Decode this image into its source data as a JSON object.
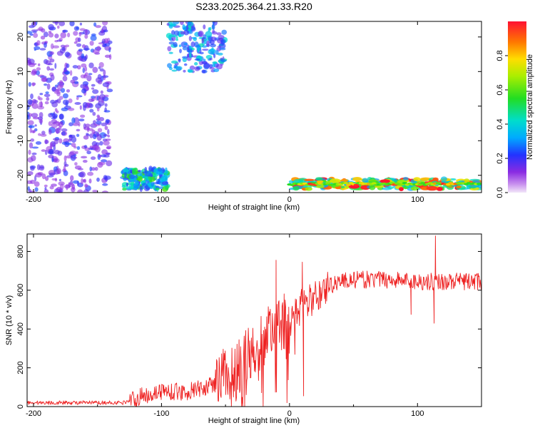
{
  "title": "S233.2025.364.21.33.R20",
  "chart_data": [
    {
      "type": "heatmap",
      "name": "spectrogram",
      "xlabel": "Height of straight line (km)",
      "ylabel": "Frequency (Hz)",
      "xlim": [
        -205,
        150
      ],
      "ylim": [
        -25,
        24.5
      ],
      "xticks": [
        -200,
        -100,
        0,
        100
      ],
      "yticks": [
        -20,
        -10,
        0,
        10,
        20
      ],
      "colorbar": {
        "label": "Normalized spectral amplitude",
        "range": [
          0,
          1
        ],
        "ticks": [
          0.0,
          0.2,
          0.4,
          0.6,
          0.8
        ],
        "colormap": "rainbow (violet low, red high)"
      },
      "features": [
        {
          "description": "scattered weak-to-moderate signals across all frequencies",
          "x_range": [
            -205,
            -140
          ],
          "freq_range": [
            -25,
            24.5
          ],
          "amplitude": [
            0.1,
            0.25
          ]
        },
        {
          "description": "strong band near lower band edge",
          "x_range": [
            -130,
            -95
          ],
          "freq_range": [
            -24,
            -18
          ],
          "amplitude": [
            0.2,
            0.6
          ]
        },
        {
          "description": "signal blobs near upper band edge",
          "x_range": [
            -95,
            -50
          ],
          "freq_range": [
            10,
            24.5
          ],
          "amplitude": [
            0.15,
            0.45
          ]
        },
        {
          "description": "sustained strong tone near -23 Hz",
          "x_range": [
            0,
            150
          ],
          "freq_range": [
            -24,
            -21
          ],
          "amplitude": [
            0.3,
            1.0
          ]
        }
      ]
    },
    {
      "type": "line",
      "name": "snr",
      "xlabel": "Height of straight line (km)",
      "ylabel": "SNR (10 * v/v)",
      "xlim": [
        -205,
        150
      ],
      "ylim": [
        0,
        890
      ],
      "xticks": [
        -200,
        -100,
        0,
        100
      ],
      "yticks": [
        0,
        200,
        400,
        600,
        800
      ],
      "color": "#ee2222",
      "series_profile": {
        "x": [
          -205,
          -130,
          -120,
          -100,
          -80,
          -60,
          -40,
          -30,
          -20,
          -10,
          0,
          10,
          20,
          30,
          40,
          60,
          80,
          100,
          120,
          150
        ],
        "y": [
          20,
          20,
          45,
          80,
          75,
          110,
          200,
          280,
          360,
          420,
          440,
          520,
          560,
          620,
          650,
          655,
          655,
          645,
          645,
          645
        ]
      },
      "spikes": [
        {
          "x": -10.5,
          "y": 755
        },
        {
          "x": 10,
          "y": 745
        },
        {
          "x": -2,
          "y": 20
        },
        {
          "x": 11,
          "y": 55
        },
        {
          "x": 114,
          "y": 880
        },
        {
          "x": 113,
          "y": 430
        },
        {
          "x": 95,
          "y": 475
        }
      ]
    }
  ]
}
